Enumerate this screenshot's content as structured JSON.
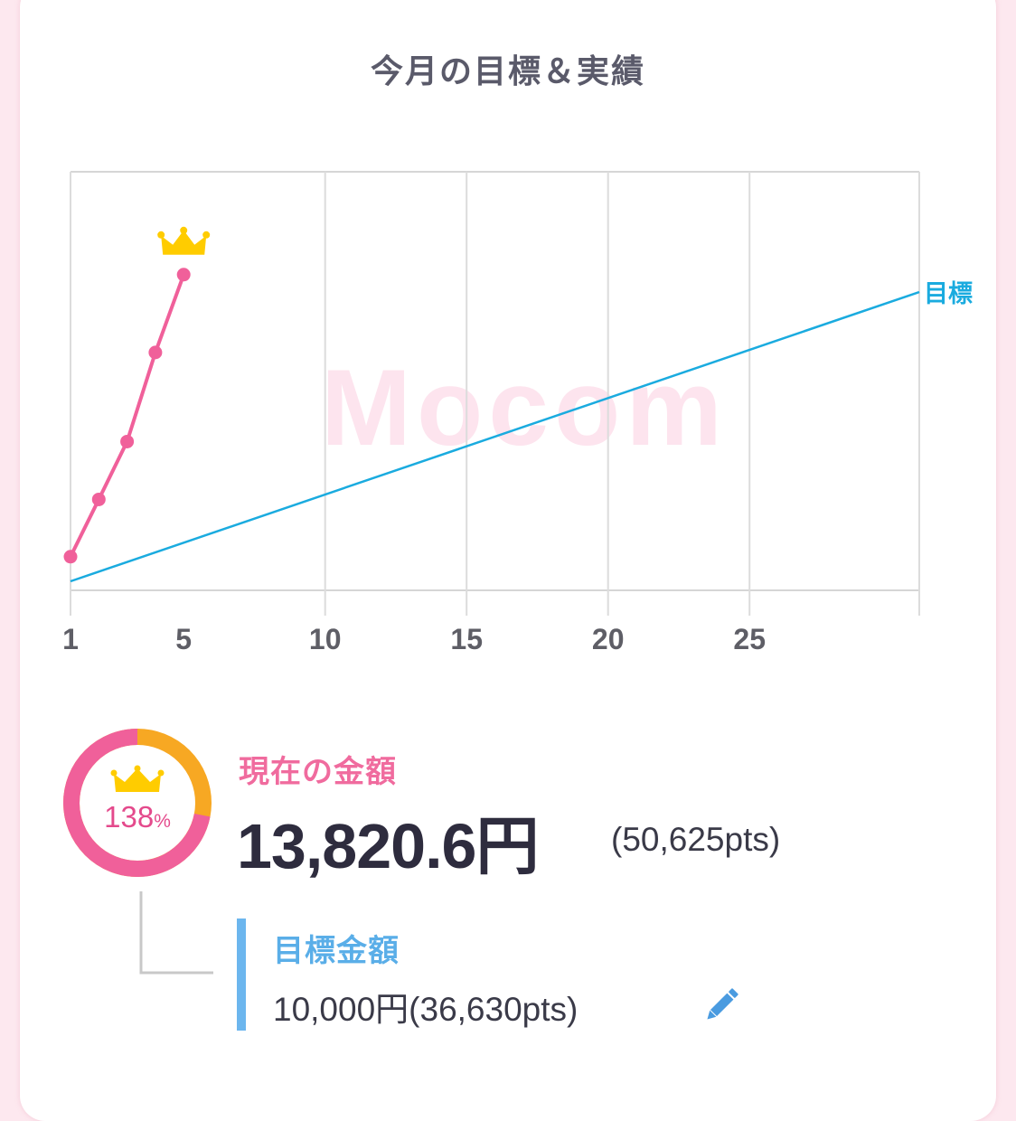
{
  "header": {
    "title": "今月の目標＆実績"
  },
  "watermark": {
    "text": "Mocom"
  },
  "chart_data": {
    "type": "line",
    "x_ticks": [
      "1",
      "5",
      "10",
      "15",
      "20",
      "25"
    ],
    "xlim": [
      1,
      31
    ],
    "series": [
      {
        "name": "",
        "color": "#f0609a",
        "x": [
          1,
          2,
          3,
          4,
          5
        ],
        "values": [
          0.085,
          0.283,
          0.483,
          0.791,
          1.06
        ]
      },
      {
        "name": "目標",
        "color": "#1aabdf",
        "x": [
          1,
          31
        ],
        "values": [
          0,
          1
        ]
      }
    ],
    "target_label": "目標",
    "grid": true
  },
  "summary": {
    "percent_value": "138",
    "percent_unit": "%",
    "current_label": "現在の金額",
    "current_amount": "13,820.6円",
    "current_pts": "(50,625pts)",
    "goal_label": "目標金額",
    "goal_value": "10,000円(36,630pts)"
  },
  "ring": {
    "fill_fraction": 0.72,
    "primary_color": "#f0609a",
    "secondary_color": "#f7a823"
  },
  "colors": {
    "accent_pink": "#f0609a",
    "accent_blue": "#1aabdf",
    "crown": "#ffcc00"
  },
  "icons": {
    "crown": "crown-icon",
    "edit": "pencil-icon"
  }
}
